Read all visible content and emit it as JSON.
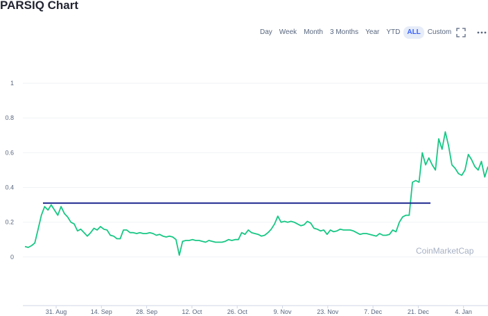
{
  "header": {
    "title": "PARSIQ Chart"
  },
  "range_tabs": [
    {
      "label": "Day",
      "active": false
    },
    {
      "label": "Week",
      "active": false
    },
    {
      "label": "Month",
      "active": false
    },
    {
      "label": "3 Months",
      "active": false
    },
    {
      "label": "Year",
      "active": false
    },
    {
      "label": "YTD",
      "active": false
    },
    {
      "label": "ALL",
      "active": true
    },
    {
      "label": "Custom",
      "active": false
    }
  ],
  "toolbar": {
    "fullscreen_icon": "fullscreen-icon",
    "more_icon": "more-icon"
  },
  "watermark": "CoinMarketCap",
  "chart_data": {
    "type": "line",
    "x_ticks": [
      "31. Aug",
      "14. Sep",
      "28. Sep",
      "12. Oct",
      "26. Oct",
      "9. Nov",
      "23. Nov",
      "7. Dec",
      "21. Dec",
      "4. Jan"
    ],
    "y_ticks": [
      "1",
      "0.8",
      "0.6",
      "0.4",
      "0.2",
      "0"
    ],
    "ylim": [
      -0.28,
      1.12
    ],
    "grid": true,
    "line_color": "#16c784",
    "reference_line": {
      "value": 0.31,
      "color": "#1f2a8f"
    },
    "series": [
      {
        "values": [
          0.06,
          0.055,
          0.065,
          0.08,
          0.16,
          0.24,
          0.29,
          0.27,
          0.3,
          0.27,
          0.24,
          0.29,
          0.25,
          0.23,
          0.2,
          0.19,
          0.15,
          0.16,
          0.14,
          0.12,
          0.14,
          0.165,
          0.155,
          0.175,
          0.16,
          0.155,
          0.125,
          0.12,
          0.105,
          0.105,
          0.155,
          0.155,
          0.14,
          0.14,
          0.135,
          0.14,
          0.135,
          0.135,
          0.14,
          0.135,
          0.125,
          0.13,
          0.12,
          0.115,
          0.12,
          0.115,
          0.1,
          0.01,
          0.09,
          0.095,
          0.095,
          0.1,
          0.095,
          0.095,
          0.09,
          0.085,
          0.095,
          0.09,
          0.085,
          0.085,
          0.085,
          0.09,
          0.1,
          0.095,
          0.1,
          0.1,
          0.14,
          0.13,
          0.155,
          0.14,
          0.135,
          0.13,
          0.12,
          0.125,
          0.14,
          0.16,
          0.19,
          0.235,
          0.2,
          0.205,
          0.2,
          0.205,
          0.2,
          0.19,
          0.18,
          0.185,
          0.205,
          0.195,
          0.165,
          0.16,
          0.15,
          0.155,
          0.13,
          0.155,
          0.145,
          0.15,
          0.16,
          0.155,
          0.155,
          0.155,
          0.15,
          0.14,
          0.13,
          0.135,
          0.135,
          0.13,
          0.125,
          0.12,
          0.135,
          0.125,
          0.125,
          0.13,
          0.155,
          0.145,
          0.2,
          0.23,
          0.24,
          0.24,
          0.43,
          0.44,
          0.43,
          0.6,
          0.53,
          0.57,
          0.53,
          0.5,
          0.68,
          0.62,
          0.72,
          0.64,
          0.53,
          0.51,
          0.48,
          0.47,
          0.5,
          0.59,
          0.56,
          0.52,
          0.5,
          0.55,
          0.46,
          0.52
        ]
      }
    ]
  }
}
